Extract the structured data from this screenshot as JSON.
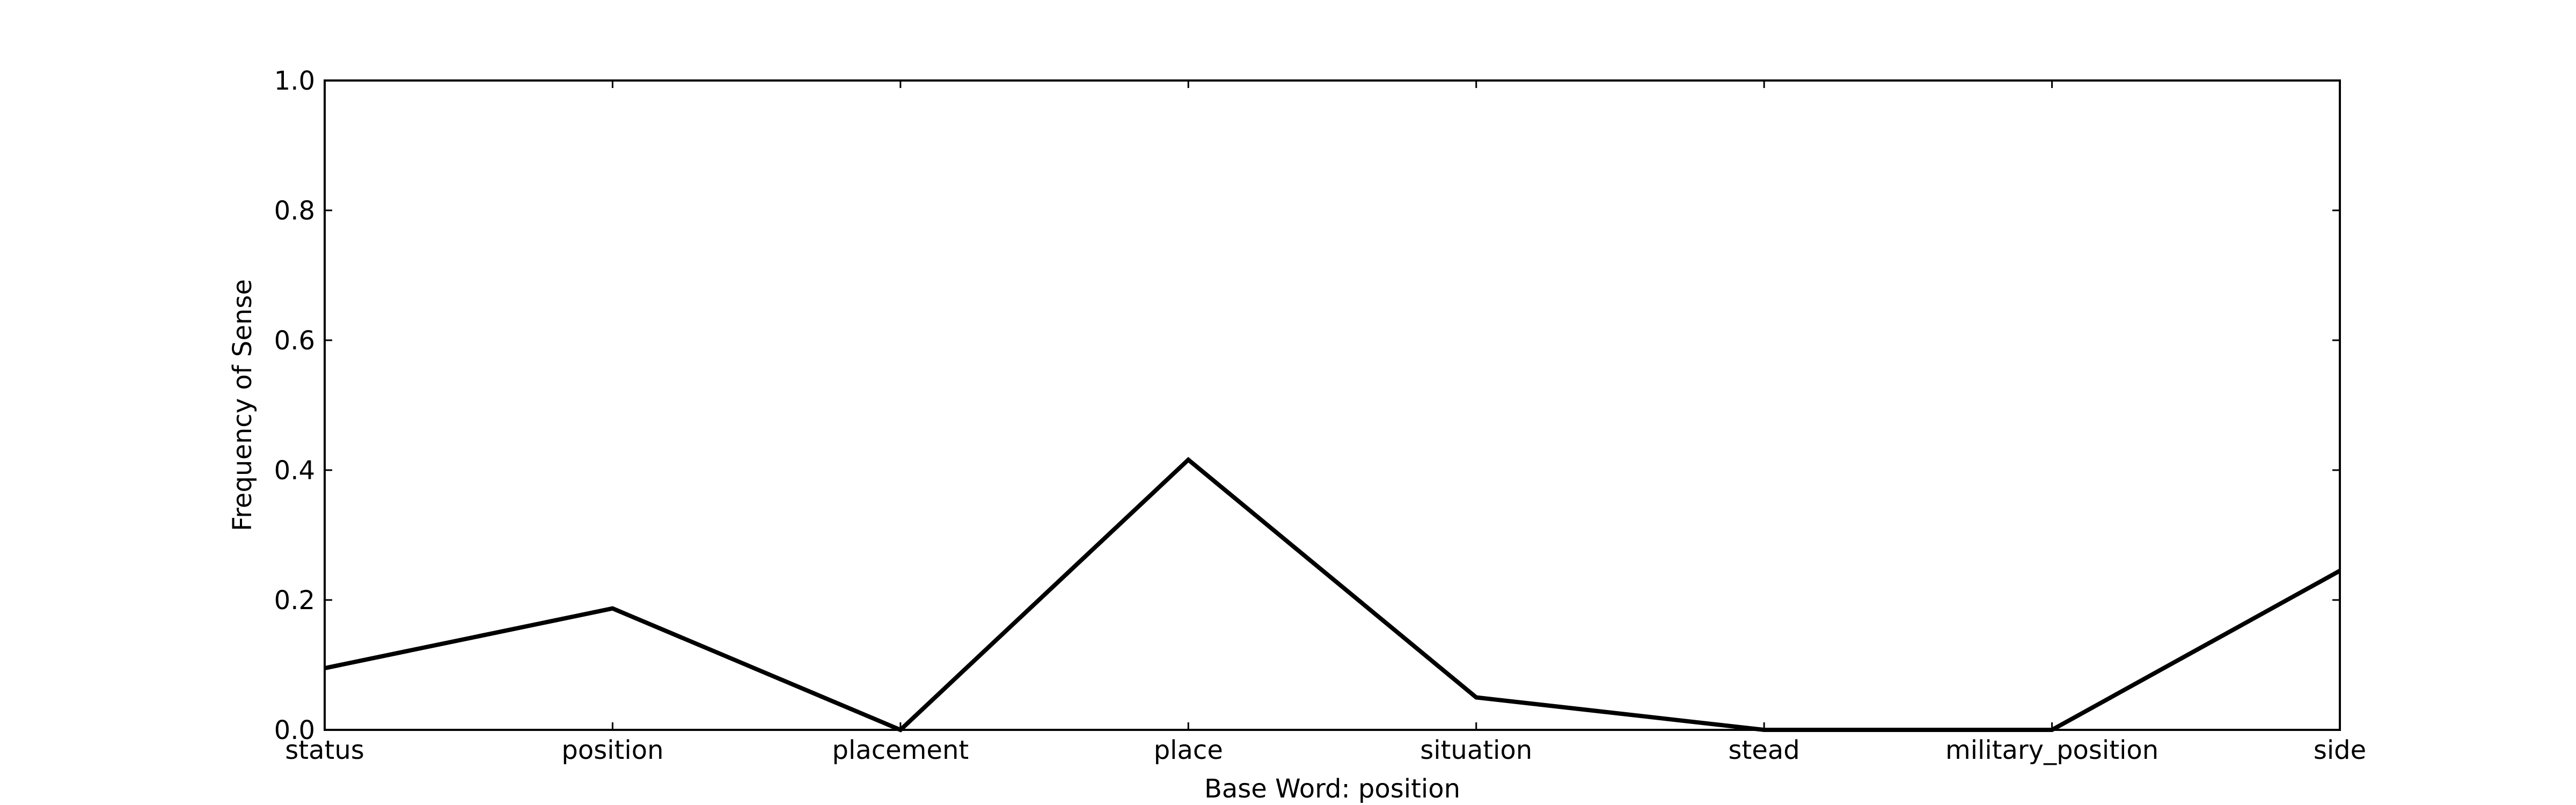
{
  "chart_data": {
    "type": "line",
    "categories": [
      "status",
      "position",
      "placement",
      "place",
      "situation",
      "stead",
      "military_position",
      "side"
    ],
    "values": [
      0.095,
      0.187,
      0.0,
      0.416,
      0.05,
      0.0,
      0.0,
      0.245
    ],
    "xlabel": "Base Word: position",
    "ylabel": "Frequency of Sense",
    "ylim": [
      0,
      1.0
    ],
    "yticks": [
      "0.0",
      "0.2",
      "0.4",
      "0.6",
      "0.8",
      "1.0"
    ],
    "grid": false,
    "line_color": "#000000"
  }
}
